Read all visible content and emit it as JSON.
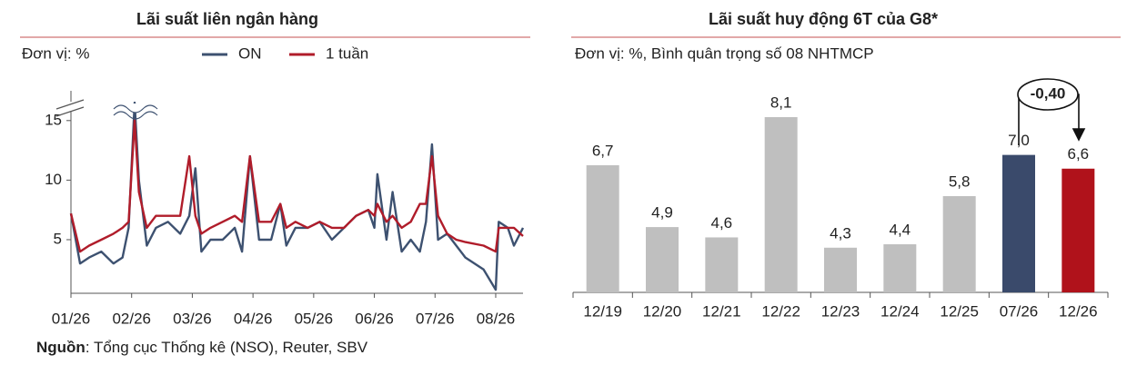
{
  "chart_data": [
    {
      "type": "line",
      "title": "Lãi suất liên ngân hàng",
      "subtitle": "Đơn vị: %",
      "x": [
        1.0,
        1.15,
        1.3,
        1.5,
        1.7,
        1.85,
        1.95,
        2.05,
        2.12,
        2.25,
        2.4,
        2.6,
        2.8,
        2.95,
        3.05,
        3.15,
        3.3,
        3.5,
        3.7,
        3.82,
        3.95,
        4.1,
        4.3,
        4.45,
        4.55,
        4.7,
        4.9,
        5.1,
        5.3,
        5.5,
        5.7,
        5.9,
        6.0,
        6.05,
        6.2,
        6.3,
        6.45,
        6.6,
        6.75,
        6.85,
        6.95,
        7.05,
        7.2,
        7.35,
        7.5,
        7.8,
        8.0,
        8.05,
        8.2,
        8.3,
        8.45
      ],
      "series": [
        {
          "name": "ON",
          "color": "#3d5170",
          "values": [
            7.2,
            3,
            3.5,
            4,
            3,
            3.5,
            6,
            16.5,
            10,
            4.5,
            6,
            6.5,
            5.5,
            7,
            11,
            4,
            5,
            5,
            6,
            4,
            12,
            5,
            5,
            8,
            4.5,
            6,
            6,
            6.5,
            5,
            6,
            7,
            7.5,
            6,
            10.5,
            5,
            9,
            4,
            5,
            4,
            6.5,
            13,
            5,
            5.5,
            4.5,
            3.5,
            2.5,
            0.8,
            6.5,
            6,
            4.5,
            6
          ]
        },
        {
          "name": "1 tuần",
          "color": "#b01c2a",
          "values": [
            7.2,
            4,
            4.5,
            5,
            5.5,
            6,
            6.5,
            15,
            9,
            6,
            7,
            7,
            7,
            12,
            7,
            5.5,
            6,
            6.5,
            7,
            6.5,
            12,
            6.5,
            6.5,
            8,
            6,
            6.5,
            6,
            6.5,
            6,
            6,
            7,
            7.5,
            7,
            8,
            6.5,
            7,
            6,
            6.5,
            8,
            8,
            12,
            7,
            5.5,
            5,
            4.8,
            4.5,
            4,
            6,
            6,
            6,
            5.3
          ]
        }
      ],
      "xlim": [
        1,
        8.45
      ],
      "xticks": [
        {
          "value": 1,
          "label": "01/26"
        },
        {
          "value": 2,
          "label": "02/26"
        },
        {
          "value": 3,
          "label": "03/26"
        },
        {
          "value": 4,
          "label": "04/26"
        },
        {
          "value": 5,
          "label": "05/26"
        },
        {
          "value": 6,
          "label": "06/26"
        },
        {
          "value": 7,
          "label": "07/26"
        },
        {
          "value": 8,
          "label": "08/26"
        }
      ],
      "ylim": [
        0.5,
        17.5
      ],
      "yticks": [
        5,
        10,
        15
      ],
      "source": {
        "label": "Nguồn",
        "text": ": Tổng cục Thống kê (NSO), Reuter, SBV"
      }
    },
    {
      "type": "bar",
      "title": "Lãi suất huy động 6T của G8*",
      "subtitle": "Đơn vị: %, Bình quân trọng số 08 NHTMCP",
      "categories": [
        "12/19",
        "12/20",
        "12/21",
        "12/22",
        "12/23",
        "12/24",
        "12/25",
        "07/26",
        "12/26"
      ],
      "values": [
        6.7,
        4.9,
        4.6,
        8.1,
        4.3,
        4.4,
        5.8,
        7.0,
        6.6
      ],
      "value_labels": [
        "6,7",
        "4,9",
        "4,6",
        "8,1",
        "4,3",
        "4,4",
        "5,8",
        "7,0",
        "6,6"
      ],
      "colors": [
        "#bfbfbf",
        "#bfbfbf",
        "#bfbfbf",
        "#bfbfbf",
        "#bfbfbf",
        "#bfbfbf",
        "#bfbfbf",
        "#3a4a6b",
        "#b0121b"
      ],
      "ylim": [
        3,
        9.5
      ],
      "annotation": "-0,40"
    }
  ]
}
